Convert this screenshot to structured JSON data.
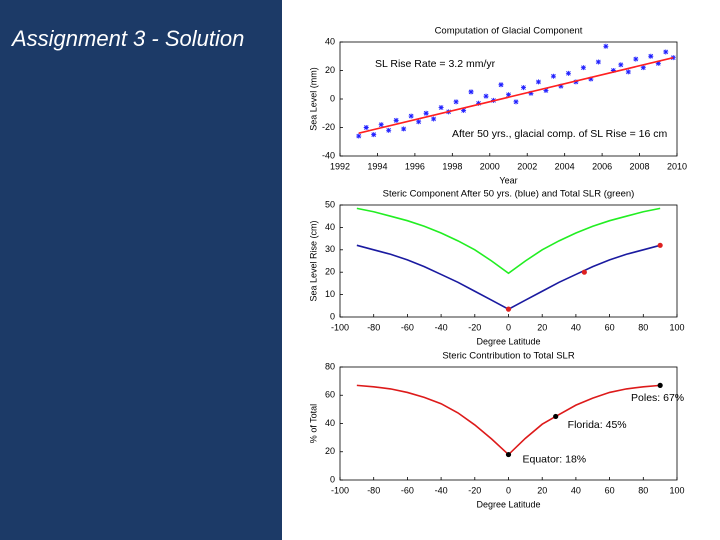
{
  "slide": {
    "title": "Assignment 3 - Solution"
  },
  "chart_data": [
    {
      "type": "scatter",
      "title": "Computation of Glacial Component",
      "x_label": "Year",
      "y_label": "Sea Level (mm)",
      "xlim": [
        1992,
        2010
      ],
      "xticks": [
        1992,
        1994,
        1996,
        1998,
        2000,
        2002,
        2004,
        2006,
        2008,
        2010
      ],
      "ylim": [
        -40,
        40
      ],
      "yticks": [
        -40,
        -20,
        0,
        20,
        40
      ],
      "annotations": [
        "SL Rise Rate = 3.2 mm/yr",
        "After 50 yrs., glacial comp. of SL Rise = 16 cm"
      ],
      "series": [
        {
          "type": "scatter",
          "marker": "star",
          "color": "#2020ff",
          "x": [
            1993.0,
            1993.4,
            1993.8,
            1994.2,
            1994.6,
            1995.0,
            1995.4,
            1995.8,
            1996.2,
            1996.6,
            1997.0,
            1997.4,
            1997.8,
            1998.2,
            1998.6,
            1999.0,
            1999.4,
            1999.8,
            2000.2,
            2000.6,
            2001.0,
            2001.4,
            2001.8,
            2002.2,
            2002.6,
            2003.0,
            2003.4,
            2003.8,
            2004.2,
            2004.6,
            2005.0,
            2005.4,
            2005.8,
            2006.2,
            2006.6,
            2007.0,
            2007.4,
            2007.8,
            2008.2,
            2008.6,
            2009.0,
            2009.4,
            2009.8
          ],
          "values": [
            -26,
            -20,
            -25,
            -18,
            -22,
            -15,
            -21,
            -12,
            -16,
            -10,
            -14,
            -6,
            -9,
            -2,
            -8,
            5,
            -3,
            2,
            -1,
            10,
            3,
            -2,
            8,
            4,
            12,
            6,
            16,
            9,
            18,
            12,
            22,
            14,
            26,
            37,
            20,
            24,
            19,
            28,
            22,
            30,
            25,
            33,
            29
          ]
        },
        {
          "type": "line",
          "color": "#ff2020",
          "x": [
            1993,
            2009.8
          ],
          "values": [
            -24,
            29
          ]
        }
      ]
    },
    {
      "type": "line",
      "title": "Steric Component After 50 yrs. (blue) and Total SLR (green)",
      "x_label": "Degree Latitude",
      "y_label": "Sea Level Rise (cm)",
      "xlim": [
        -100,
        100
      ],
      "xticks": [
        -100,
        -80,
        -60,
        -40,
        -20,
        0,
        20,
        40,
        60,
        80,
        100
      ],
      "ylim": [
        0,
        50
      ],
      "yticks": [
        0,
        10,
        20,
        30,
        40,
        50
      ],
      "series": [
        {
          "type": "line",
          "color": "#22ee22",
          "x": [
            -90,
            -80,
            -70,
            -60,
            -50,
            -40,
            -30,
            -20,
            -10,
            0,
            10,
            20,
            30,
            40,
            50,
            60,
            70,
            80,
            90
          ],
          "values": [
            48.5,
            47,
            45,
            43,
            40.5,
            37.5,
            34,
            30,
            25,
            19.5,
            25,
            30,
            34,
            37.5,
            40.5,
            43,
            45,
            47,
            48.5
          ]
        },
        {
          "type": "line",
          "color": "#1a1aa0",
          "x": [
            -90,
            -80,
            -70,
            -60,
            -50,
            -40,
            -30,
            -20,
            -10,
            0,
            10,
            20,
            30,
            40,
            50,
            60,
            70,
            80,
            90
          ],
          "values": [
            32,
            30,
            28,
            25.5,
            22.5,
            19,
            15.5,
            11.5,
            7.5,
            3.5,
            7.5,
            11.5,
            15.5,
            19,
            22.5,
            25.5,
            28,
            30,
            32
          ]
        },
        {
          "type": "scatter",
          "marker": "dot",
          "color": "#dd2020",
          "x": [
            0,
            45,
            90
          ],
          "values": [
            3.5,
            20,
            32
          ]
        }
      ]
    },
    {
      "type": "line",
      "title": "Steric Contribution to Total SLR",
      "x_label": "Degree Latitude",
      "y_label": "% of Total",
      "xlim": [
        -100,
        100
      ],
      "xticks": [
        -100,
        -80,
        -60,
        -40,
        -20,
        0,
        20,
        40,
        60,
        80,
        100
      ],
      "ylim": [
        0,
        80
      ],
      "yticks": [
        0,
        20,
        40,
        60,
        80
      ],
      "series": [
        {
          "type": "line",
          "color": "#dd1a1a",
          "x": [
            -90,
            -80,
            -70,
            -60,
            -50,
            -40,
            -30,
            -20,
            -10,
            0,
            10,
            20,
            28,
            40,
            50,
            60,
            70,
            80,
            90
          ],
          "values": [
            67,
            66,
            64.5,
            62,
            58.5,
            54,
            47.5,
            39,
            29,
            18,
            29.5,
            39.5,
            45,
            53,
            58,
            62,
            64.5,
            66,
            67
          ]
        },
        {
          "type": "scatter",
          "marker": "dot",
          "color": "#000000",
          "x": [
            0,
            28,
            90
          ],
          "values": [
            18,
            45,
            67
          ],
          "value_labels": [
            "Equator: 18%",
            "Florida: 45%",
            "Poles: 67%"
          ]
        }
      ]
    }
  ]
}
